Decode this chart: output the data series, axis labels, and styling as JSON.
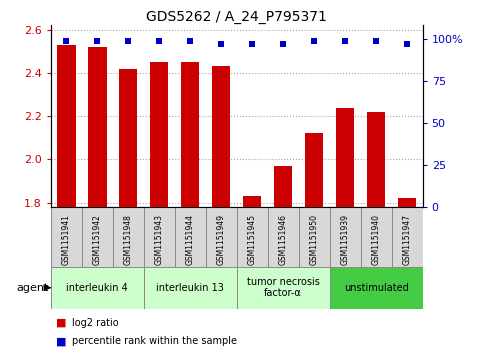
{
  "title": "GDS5262 / A_24_P795371",
  "samples": [
    "GSM1151941",
    "GSM1151942",
    "GSM1151948",
    "GSM1151943",
    "GSM1151944",
    "GSM1151949",
    "GSM1151945",
    "GSM1151946",
    "GSM1151950",
    "GSM1151939",
    "GSM1151940",
    "GSM1151947"
  ],
  "log2_ratio": [
    2.53,
    2.52,
    2.42,
    2.45,
    2.45,
    2.43,
    1.83,
    1.97,
    2.12,
    2.24,
    2.22,
    1.82
  ],
  "percentile_rank": [
    99,
    99,
    99,
    99,
    99,
    97,
    97,
    97,
    99,
    99,
    99,
    97
  ],
  "bar_color": "#cc0000",
  "dot_color": "#0000cc",
  "ylim_left": [
    1.78,
    2.62
  ],
  "ylim_right": [
    0,
    108
  ],
  "yticks_left": [
    1.8,
    2.0,
    2.2,
    2.4,
    2.6
  ],
  "yticks_right": [
    0,
    25,
    50,
    75,
    100
  ],
  "groups": [
    {
      "label": "interleukin 4",
      "start": 0,
      "end": 3,
      "color": "#ccffcc"
    },
    {
      "label": "interleukin 13",
      "start": 3,
      "end": 6,
      "color": "#ccffcc"
    },
    {
      "label": "tumor necrosis\nfactor-α",
      "start": 6,
      "end": 9,
      "color": "#ccffcc"
    },
    {
      "label": "unstimulated",
      "start": 9,
      "end": 12,
      "color": "#44cc44"
    }
  ],
  "agent_label": "agent",
  "legend_log2": "log2 ratio",
  "legend_pct": "percentile rank within the sample",
  "bar_color_hex": "#cc0000",
  "dot_color_hex": "#0000cc",
  "tick_label_color_left": "#cc0000",
  "tick_label_color_right": "#0000cc",
  "bar_width": 0.6,
  "grid_linestyle": ":"
}
